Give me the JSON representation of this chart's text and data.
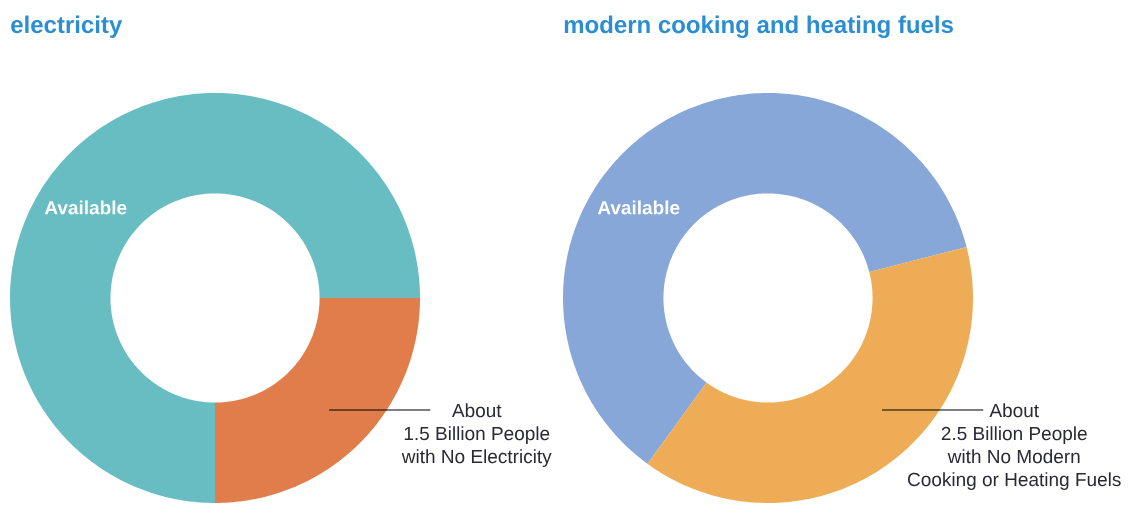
{
  "chart_data": [
    {
      "type": "donut",
      "title": "electricity",
      "categories": [
        "Available",
        "About 1.5 Billion People with No Electricity"
      ],
      "values": [
        75,
        25
      ],
      "colors": [
        "#67bdc1",
        "#e07d4a"
      ]
    },
    {
      "type": "donut",
      "title": "modern cooking and heating fuels",
      "categories": [
        "Available",
        "About 2.5 Billion People with No Modern Cooking or Heating Fuels"
      ],
      "values": [
        61,
        39
      ],
      "colors": [
        "#86a7d7",
        "#eeac56"
      ]
    }
  ]
}
